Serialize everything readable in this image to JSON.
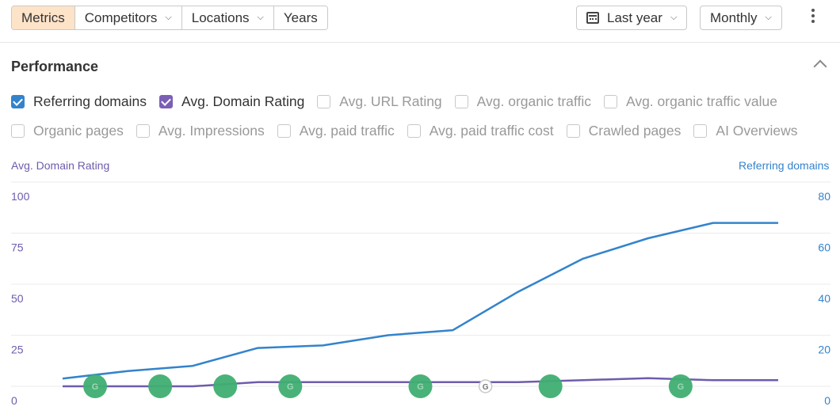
{
  "toolbar": {
    "tabs": [
      {
        "label": "Metrics",
        "active": true
      },
      {
        "label": "Competitors",
        "dropdown": true
      },
      {
        "label": "Locations",
        "dropdown": true
      },
      {
        "label": "Years"
      }
    ],
    "date_range": "Last year",
    "interval": "Monthly"
  },
  "section": {
    "title": "Performance",
    "metrics_row1": [
      {
        "label": "Referring domains",
        "checked": true,
        "color": "#3383cc"
      },
      {
        "label": "Avg. Domain Rating",
        "checked": true,
        "color": "#7b5fb5"
      },
      {
        "label": "Avg. URL Rating",
        "checked": false
      },
      {
        "label": "Avg. organic traffic",
        "checked": false
      },
      {
        "label": "Avg. organic traffic value",
        "checked": false
      }
    ],
    "metrics_row2": [
      {
        "label": "Organic pages",
        "checked": false
      },
      {
        "label": "Avg. Impressions",
        "checked": false
      },
      {
        "label": "Avg. paid traffic",
        "checked": false
      },
      {
        "label": "Avg. paid traffic cost",
        "checked": false
      },
      {
        "label": "Crawled pages",
        "checked": false
      },
      {
        "label": "AI Overviews",
        "checked": false
      }
    ]
  },
  "chart_data": {
    "type": "line",
    "ylabel_left": "Avg. Domain Rating",
    "ylabel_right": "Referring domains",
    "ylim_left": [
      0,
      100
    ],
    "ylim_right": [
      0,
      80
    ],
    "yticks_left": [
      "0",
      "25",
      "50",
      "75",
      "100"
    ],
    "yticks_right": [
      "0",
      "20",
      "40",
      "60",
      "80"
    ],
    "grid": true,
    "series": [
      {
        "name": "Referring domains",
        "axis": "right",
        "color": "#3383cc",
        "values": [
          3,
          6,
          8,
          15,
          16,
          20,
          22,
          37,
          50,
          58,
          64,
          64
        ]
      },
      {
        "name": "Avg. Domain Rating",
        "axis": "left",
        "color": "#6e5cad",
        "values": [
          0,
          0,
          0,
          2,
          2,
          2,
          2,
          2,
          3,
          4,
          3,
          3
        ]
      }
    ],
    "google_updates": [
      {
        "index": 0.5,
        "style": "green"
      },
      {
        "index": 1.5,
        "style": "green-plain"
      },
      {
        "index": 2.5,
        "style": "green-plain"
      },
      {
        "index": 3.5,
        "style": "green"
      },
      {
        "index": 5.5,
        "style": "green"
      },
      {
        "index": 6.5,
        "style": "small"
      },
      {
        "index": 7.5,
        "style": "green-plain"
      },
      {
        "index": 9.5,
        "style": "green"
      }
    ],
    "marker_glyph": "G"
  }
}
